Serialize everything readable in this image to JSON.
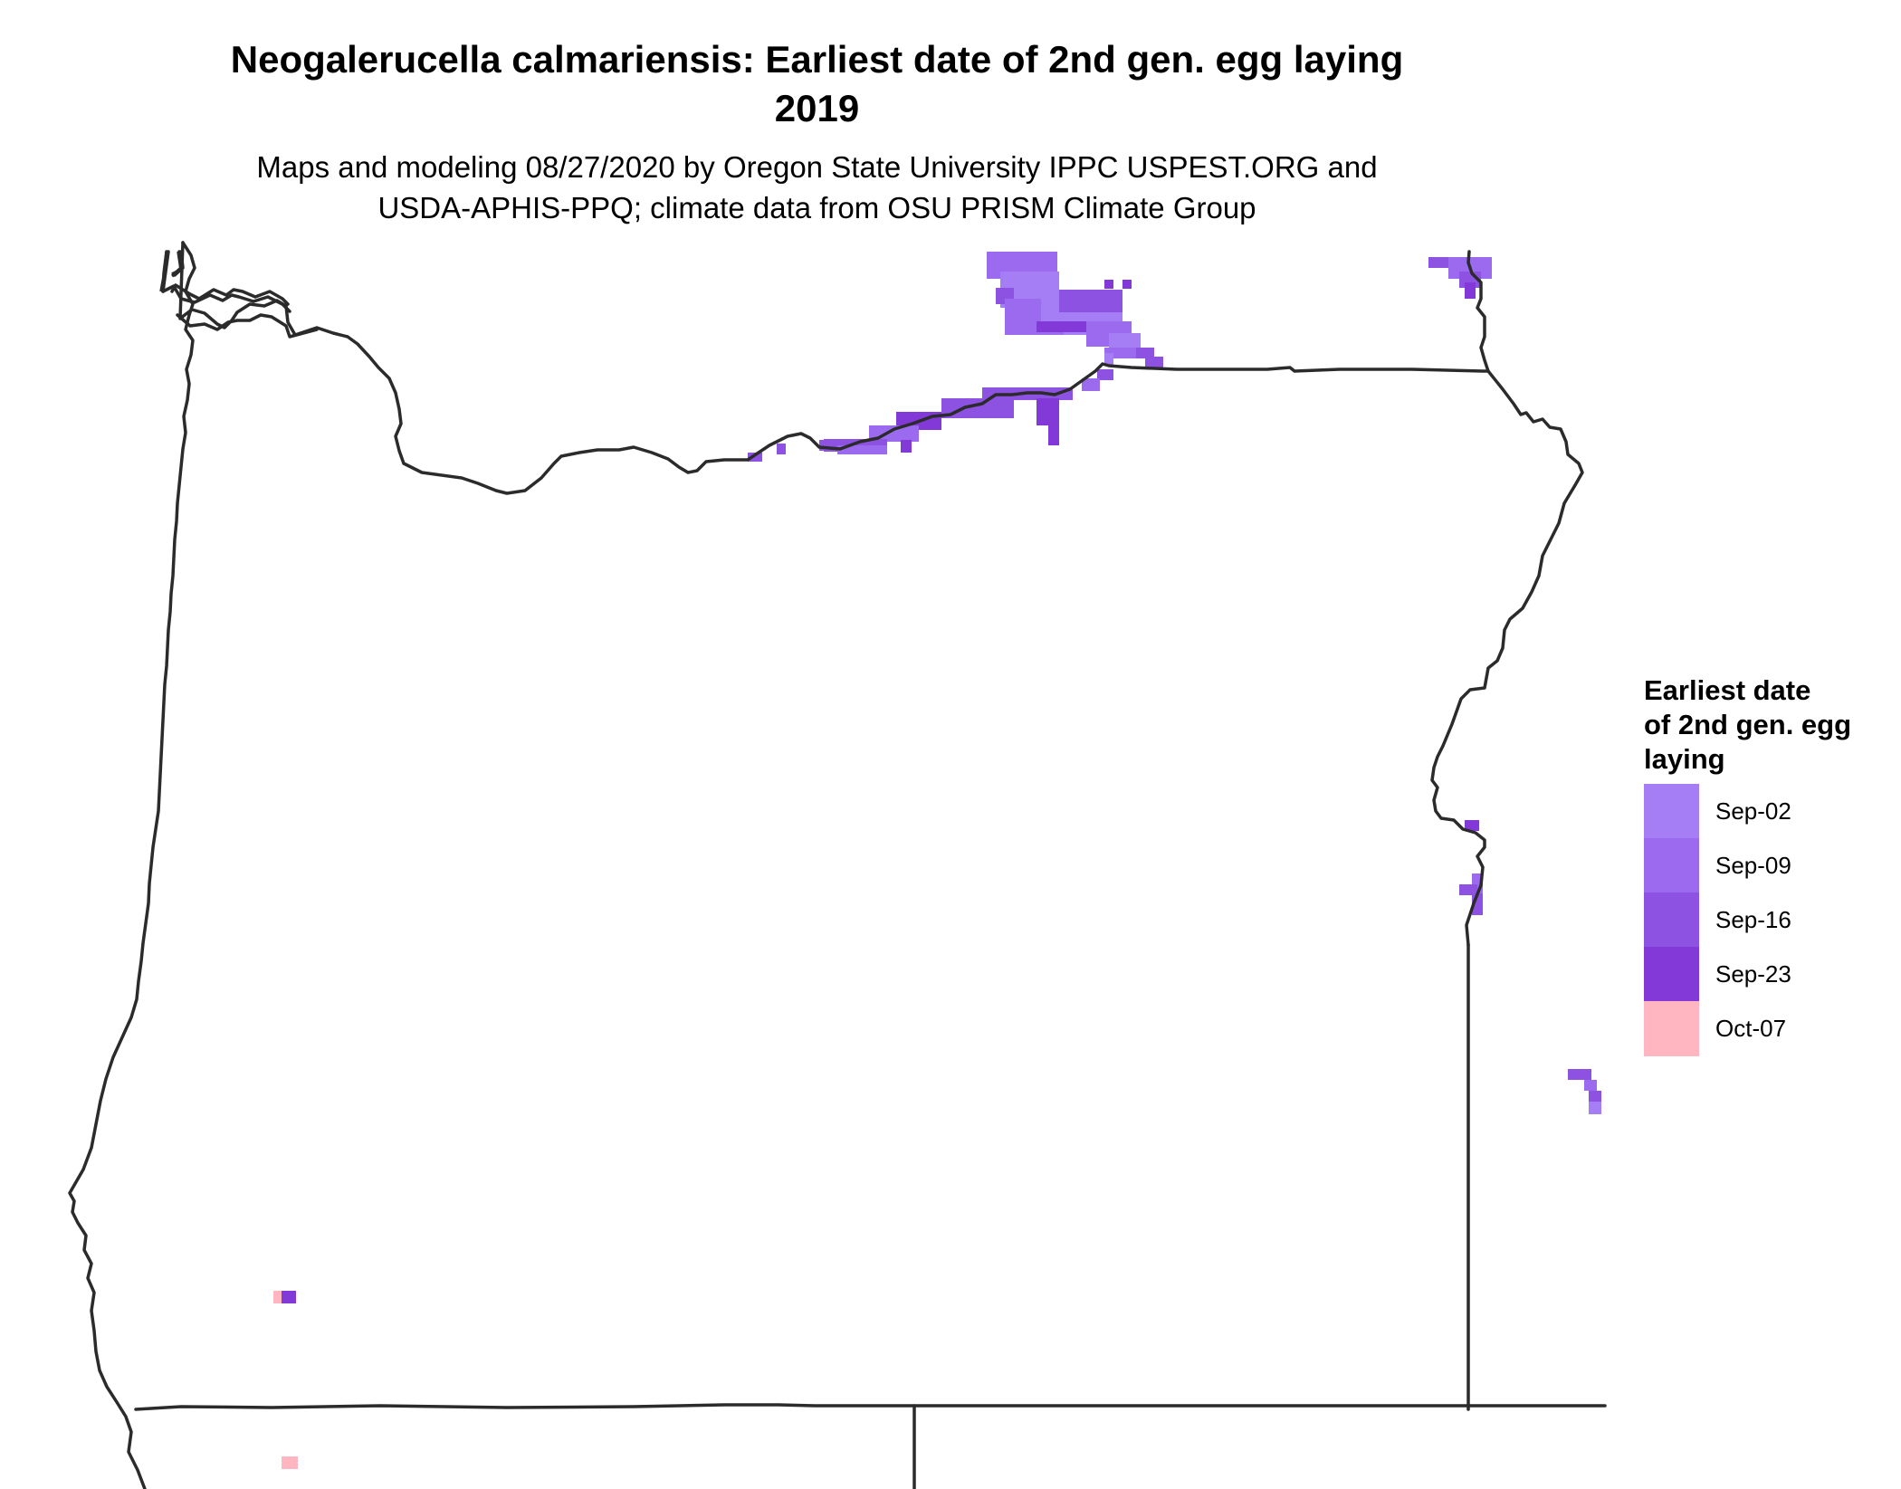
{
  "title": {
    "line1": "Neogalerucella calmariensis: Earliest date of 2nd gen. egg laying",
    "line2": "2019"
  },
  "subtitle": {
    "line1": "Maps and modeling 08/27/2020 by Oregon State University IPPC USPEST.ORG and",
    "line2": "USDA-APHIS-PPQ; climate data from OSU PRISM Climate Group"
  },
  "legend": {
    "title_lines": [
      "Earliest date",
      "of 2nd gen. egg",
      "laying"
    ],
    "items": [
      {
        "label": "Sep-02",
        "color": "#A57EF5"
      },
      {
        "label": "Sep-09",
        "color": "#9B6AEF"
      },
      {
        "label": "Sep-16",
        "color": "#8E52E3"
      },
      {
        "label": "Sep-23",
        "color": "#8239D8"
      },
      {
        "label": "Oct-07",
        "color": "#FFB6C1"
      }
    ]
  },
  "colors": {
    "boundary": "#2b2b2b",
    "background": "#ffffff"
  }
}
